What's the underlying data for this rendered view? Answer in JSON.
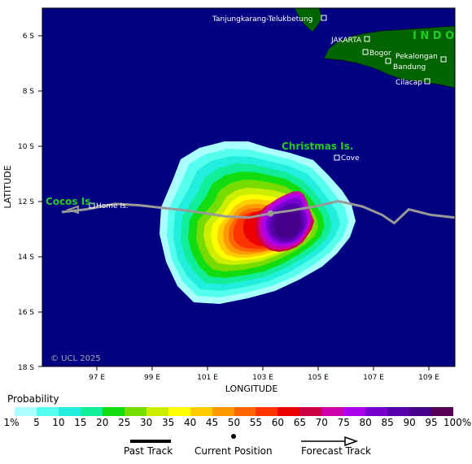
{
  "colors": {
    "ocean": "#000080",
    "land": "#006400",
    "country_label": "#22cc22",
    "track": "#999999",
    "frame": "#000000",
    "probability_scale": [
      "#aaffff",
      "#55ffee",
      "#22eedd",
      "#11ee99",
      "#11dd11",
      "#77dd00",
      "#ccee00",
      "#ffff00",
      "#ffcc00",
      "#ff9900",
      "#ff6600",
      "#ff3300",
      "#ee0000",
      "#cc0044",
      "#cc00aa",
      "#aa00ee",
      "#7700cc",
      "#5500aa",
      "#440088",
      "#550055"
    ]
  },
  "axes": {
    "x_title": "LONGITUDE",
    "y_title": "LATITUDE",
    "x_ticks": [
      "97 E",
      "99 E",
      "101 E",
      "103 E",
      "105 E",
      "107 E",
      "109 E"
    ],
    "y_ticks": [
      "6 S",
      "8 S",
      "10 S",
      "12 S",
      "14 S",
      "16 S",
      "18 S"
    ],
    "x_range": [
      95.0,
      112.0
    ],
    "y_range": [
      -18.0,
      -5.0
    ]
  },
  "places": {
    "tanjungkarang": "Tanjungkarang-Telukbetung",
    "jakarta": "JAKARTA",
    "bogor": "Bogor",
    "pekalongan": "Pekalongan",
    "bandung": "Bandung",
    "cilacap": "Cilacap",
    "cove": "Cove",
    "home_is": "Home Is."
  },
  "regions": {
    "indonesia": "I N D O",
    "christmas": "Christmas Is.",
    "cocos": "Cocos Is."
  },
  "credit": "© UCL 2025",
  "current_position": {
    "lon": 104.4,
    "lat": -12.45
  },
  "past_track": [
    {
      "lon": 112.0,
      "lat": -12.6
    },
    {
      "lon": 111.0,
      "lat": -12.5
    },
    {
      "lon": 110.1,
      "lat": -12.3
    },
    {
      "lon": 109.5,
      "lat": -12.8
    },
    {
      "lon": 109.0,
      "lat": -12.5
    },
    {
      "lon": 108.2,
      "lat": -12.2
    },
    {
      "lon": 107.2,
      "lat": -12.0
    },
    {
      "lon": 106.2,
      "lat": -12.2
    },
    {
      "lon": 105.2,
      "lat": -12.35
    },
    {
      "lon": 104.4,
      "lat": -12.45
    }
  ],
  "forecast_track": [
    {
      "lon": 104.4,
      "lat": -12.45
    },
    {
      "lon": 103.5,
      "lat": -12.6
    },
    {
      "lon": 102.5,
      "lat": -12.55
    },
    {
      "lon": 101.0,
      "lat": -12.35
    },
    {
      "lon": 99.0,
      "lat": -12.15
    },
    {
      "lon": 98.0,
      "lat": -12.1
    },
    {
      "lon": 96.8,
      "lat": -12.3
    },
    {
      "lon": 95.8,
      "lat": -12.4
    }
  ],
  "legend": {
    "title": "Probability",
    "labels": [
      "1%",
      "5",
      "10",
      "15",
      "20",
      "25",
      "30",
      "35",
      "40",
      "45",
      "50",
      "55",
      "60",
      "65",
      "70",
      "75",
      "80",
      "85",
      "90",
      "95",
      "100%"
    ]
  },
  "key": {
    "past": "Past Track",
    "current": "Current Position",
    "forecast": "Forecast Track"
  }
}
